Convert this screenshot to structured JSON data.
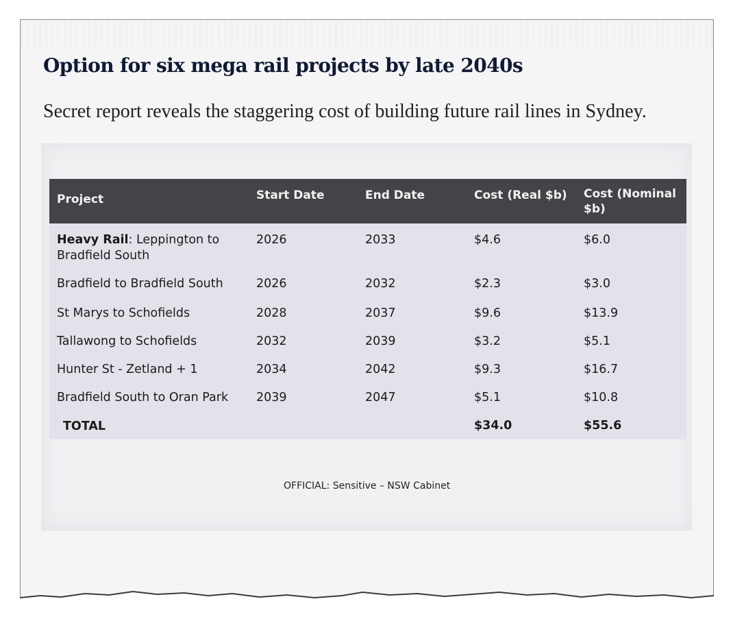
{
  "article": {
    "headline": "Option for six mega rail projects by late 2040s",
    "standfirst": "Secret report reveals the staggering cost of building future rail lines in Sydney."
  },
  "table": {
    "headers": {
      "project": "Project",
      "start": "Start Date",
      "end": "End Date",
      "cost_real": "Cost (Real $b)",
      "cost_nominal_line1": "Cost (Nominal",
      "cost_nominal_line2": "$b)"
    },
    "rows": [
      {
        "project_bold": "Heavy Rail",
        "project_rest": ": Leppington to",
        "project_line2": "Bradfield South",
        "start": "2026",
        "end": "2033",
        "cost_real": "$4.6",
        "cost_nominal": "$6.0"
      },
      {
        "project": "Bradfield to Bradfield South",
        "start": "2026",
        "end": "2032",
        "cost_real": "$2.3",
        "cost_nominal": "$3.0"
      },
      {
        "project": "St Marys to Schofields",
        "start": "2028",
        "end": "2037",
        "cost_real": "$9.6",
        "cost_nominal": "$13.9"
      },
      {
        "project": "Tallawong to Schofields",
        "start": "2032",
        "end": "2039",
        "cost_real": "$3.2",
        "cost_nominal": "$5.1"
      },
      {
        "project": "Hunter St - Zetland + 1",
        "start": "2034",
        "end": "2042",
        "cost_real": "$9.3",
        "cost_nominal": "$16.7"
      },
      {
        "project": "Bradfield South to Oran Park",
        "start": "2039",
        "end": "2047",
        "cost_real": "$5.1",
        "cost_nominal": "$10.8"
      }
    ],
    "total": {
      "label": "TOTAL",
      "cost_real": "$34.0",
      "cost_nominal": "$55.6"
    }
  },
  "footer_note": "OFFICIAL: Sensitive – NSW Cabinet"
}
